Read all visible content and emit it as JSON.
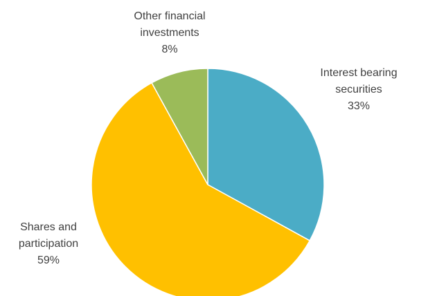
{
  "chart_data": {
    "type": "pie",
    "title": "",
    "start_angle_deg": 0,
    "direction": "clockwise",
    "slices": [
      {
        "label_lines": [
          "Interest bearing",
          "securities"
        ],
        "value": 33,
        "value_label": "33%",
        "color": "#4BACC6"
      },
      {
        "label_lines": [
          "Shares and",
          "participation"
        ],
        "value": 59,
        "value_label": "59%",
        "color": "#FFC000"
      },
      {
        "label_lines": [
          "Other financial",
          "investments"
        ],
        "value": 8,
        "value_label": "8%",
        "color": "#9BBB59"
      }
    ],
    "legend": "none"
  }
}
